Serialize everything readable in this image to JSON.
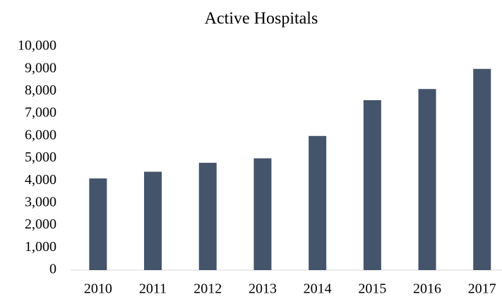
{
  "chart_data": {
    "type": "bar",
    "title": "Active Hospitals",
    "categories": [
      "2010",
      "2011",
      "2012",
      "2013",
      "2014",
      "2015",
      "2016",
      "2017"
    ],
    "values": [
      4100,
      4400,
      4800,
      5000,
      6000,
      7600,
      8100,
      9000
    ],
    "color": "#44546a",
    "ylim": [
      0,
      10000
    ],
    "yticks": [
      0,
      {
        "value": 1000,
        "label": "1,000"
      },
      {
        "value": 2000,
        "label": "2,000"
      },
      {
        "value": 3000,
        "label": "3,000"
      },
      {
        "value": 4000,
        "label": "4,000"
      },
      {
        "value": 5000,
        "label": "5,000"
      },
      {
        "value": 6000,
        "label": "6,000"
      },
      {
        "value": 7000,
        "label": "7,000"
      },
      {
        "value": 8000,
        "label": "8,000"
      },
      {
        "value": 9000,
        "label": "9,000"
      },
      {
        "value": 10000,
        "label": "10,000"
      }
    ],
    "grid": false
  }
}
